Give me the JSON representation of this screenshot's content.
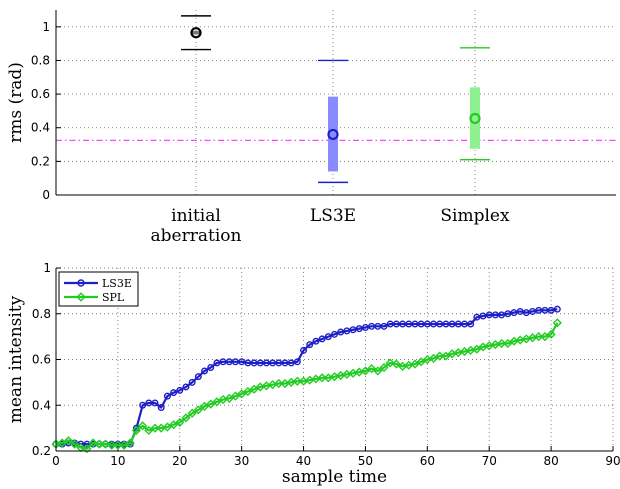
{
  "colors": {
    "ls3e": "#1f1fc8",
    "ls3e_bar": "#8a8aff",
    "simplex": "#22cc22",
    "simplex_bar": "#8ef08e",
    "spl": "#22cc22",
    "reference": "#ff44ff",
    "initial": "#000000"
  },
  "chart_data": [
    {
      "type": "box",
      "title": "",
      "xlabel": "",
      "ylabel": "rms (rad)",
      "ylim": [
        0,
        1.1
      ],
      "yticks": [
        "0",
        "0.2",
        "0.4",
        "0.6",
        "0.8",
        "1"
      ],
      "grid": true,
      "reference_line": 0.325,
      "categories": [
        {
          "lines": [
            "initial",
            "aberration"
          ],
          "median": 0.965,
          "q1": 0.955,
          "q3": 0.975,
          "min": 0.865,
          "max": 1.065,
          "color": "initial"
        },
        {
          "lines": [
            "LS3E"
          ],
          "median": 0.36,
          "q1": 0.14,
          "q3": 0.585,
          "min": 0.075,
          "max": 0.8,
          "color": "ls3e"
        },
        {
          "lines": [
            "Simplex"
          ],
          "median": 0.455,
          "q1": 0.275,
          "q3": 0.64,
          "min": 0.21,
          "max": 0.875,
          "color": "simplex"
        }
      ]
    },
    {
      "type": "line",
      "title": "",
      "xlabel": "sample time",
      "ylabel": "mean intensity",
      "xlim": [
        0,
        90
      ],
      "ylim": [
        0.2,
        1
      ],
      "xticks": [
        "0",
        "10",
        "20",
        "30",
        "40",
        "50",
        "60",
        "70",
        "80",
        "90"
      ],
      "yticks": [
        "0.2",
        "0.4",
        "0.6",
        "0.8",
        "1"
      ],
      "grid": true,
      "legend_position": "top-left",
      "series": [
        {
          "name": "LS3E",
          "color": "ls3e",
          "marker": "circle",
          "y": [
            0.23,
            0.23,
            0.235,
            0.235,
            0.23,
            0.23,
            0.23,
            0.23,
            0.23,
            0.23,
            0.23,
            0.23,
            0.23,
            0.3,
            0.4,
            0.41,
            0.41,
            0.39,
            0.44,
            0.455,
            0.465,
            0.48,
            0.5,
            0.525,
            0.55,
            0.565,
            0.585,
            0.59,
            0.59,
            0.59,
            0.59,
            0.585,
            0.585,
            0.585,
            0.585,
            0.585,
            0.585,
            0.585,
            0.585,
            0.59,
            0.64,
            0.665,
            0.68,
            0.69,
            0.7,
            0.71,
            0.72,
            0.725,
            0.73,
            0.735,
            0.74,
            0.745,
            0.745,
            0.745,
            0.755,
            0.755,
            0.755,
            0.755,
            0.755,
            0.755,
            0.755,
            0.755,
            0.755,
            0.755,
            0.755,
            0.755,
            0.755,
            0.755,
            0.785,
            0.79,
            0.795,
            0.795,
            0.795,
            0.8,
            0.805,
            0.81,
            0.805,
            0.81,
            0.815,
            0.815,
            0.815,
            0.82
          ]
        },
        {
          "name": "SPL",
          "color": "spl",
          "marker": "diamond",
          "y": [
            0.23,
            0.235,
            0.245,
            0.23,
            0.215,
            0.21,
            0.235,
            0.23,
            0.23,
            0.225,
            0.225,
            0.225,
            0.235,
            0.29,
            0.31,
            0.29,
            0.3,
            0.3,
            0.305,
            0.315,
            0.325,
            0.345,
            0.365,
            0.38,
            0.395,
            0.405,
            0.415,
            0.425,
            0.43,
            0.44,
            0.45,
            0.46,
            0.47,
            0.48,
            0.485,
            0.49,
            0.495,
            0.495,
            0.5,
            0.505,
            0.505,
            0.51,
            0.515,
            0.52,
            0.52,
            0.525,
            0.53,
            0.535,
            0.54,
            0.545,
            0.55,
            0.56,
            0.55,
            0.565,
            0.585,
            0.58,
            0.57,
            0.575,
            0.58,
            0.59,
            0.6,
            0.605,
            0.615,
            0.615,
            0.625,
            0.63,
            0.635,
            0.64,
            0.645,
            0.655,
            0.66,
            0.665,
            0.67,
            0.67,
            0.68,
            0.685,
            0.69,
            0.695,
            0.7,
            0.7,
            0.71,
            0.76
          ]
        }
      ]
    }
  ]
}
